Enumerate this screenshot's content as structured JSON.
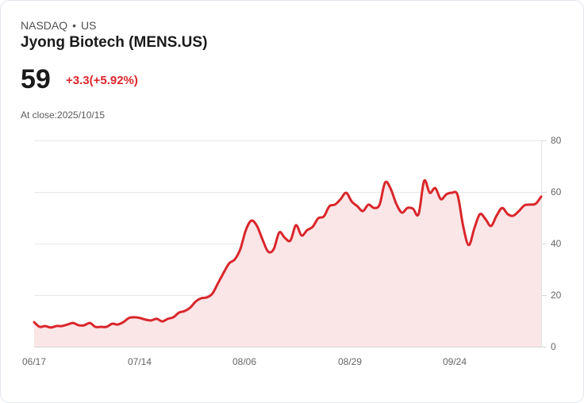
{
  "header": {
    "exchange": "NASDAQ",
    "separator": "•",
    "market": "US",
    "title": "Jyong Biotech (MENS.US)",
    "price": "59",
    "change": "+3.3(+5.92%)",
    "close_label": "At close:2025/10/15"
  },
  "colors": {
    "line": "#d9262b",
    "fill": "#fbe6e7",
    "grid": "#e5e5e5",
    "change_positive": "#d9262b"
  },
  "chart_data": {
    "type": "area",
    "title": "",
    "xlabel": "",
    "ylabel": "",
    "ylim": [
      0,
      80
    ],
    "yticks": [
      0,
      20,
      40,
      60,
      80
    ],
    "y_axis_position": "right",
    "grid": true,
    "legend": "none",
    "x_tick_labels": [
      "06/17",
      "07/14",
      "08/06",
      "08/29",
      "09/24"
    ],
    "series": [
      {
        "name": "MENS.US",
        "approx_values": [
          9.5,
          7.7,
          8.0,
          7.4,
          8.0,
          8.0,
          8.6,
          9.2,
          8.3,
          8.3,
          9.2,
          7.7,
          7.7,
          7.7,
          8.9,
          8.6,
          9.5,
          11.1,
          11.4,
          11.1,
          10.5,
          10.2,
          10.8,
          9.8,
          10.8,
          11.4,
          13.2,
          13.8,
          15.1,
          17.5,
          18.8,
          19.1,
          20.6,
          24.6,
          28.6,
          32.3,
          33.8,
          37.8,
          45.2,
          48.9,
          46.8,
          41.5,
          36.9,
          37.8,
          44.3,
          42.2,
          41.2,
          47.1,
          43.1,
          45.2,
          46.5,
          49.8,
          50.5,
          54.5,
          55.1,
          57.2,
          59.7,
          56.3,
          54.5,
          52.6,
          55.1,
          53.8,
          55.1,
          63.7,
          61.2,
          55.4,
          52.0,
          53.8,
          53.5,
          51.4,
          64.3,
          59.7,
          61.5,
          57.2,
          59.1,
          59.7,
          58.8,
          46.8,
          39.4,
          45.8,
          51.4,
          49.5,
          46.8,
          50.8,
          53.8,
          51.4,
          50.8,
          52.6,
          54.8,
          55.1,
          55.4,
          58.2
        ]
      }
    ]
  }
}
